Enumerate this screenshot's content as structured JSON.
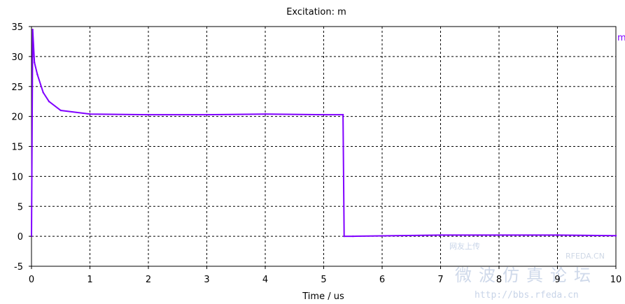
{
  "chart_data": {
    "type": "line",
    "title": "Excitation: m",
    "xlabel": "Time / us",
    "ylabel": "",
    "xlim": [
      0,
      10
    ],
    "ylim": [
      -5,
      35
    ],
    "x_ticks": [
      "0",
      "1",
      "2",
      "3",
      "4",
      "5",
      "6",
      "7",
      "8",
      "9",
      "10"
    ],
    "y_ticks": [
      "-5",
      "0",
      "5",
      "10",
      "15",
      "20",
      "25",
      "30",
      "35"
    ],
    "grid": true,
    "legend_position": "top-right",
    "series": [
      {
        "name": "m",
        "color": "#8000ff",
        "points": [
          [
            0.0,
            0.0
          ],
          [
            0.02,
            34.5
          ],
          [
            0.05,
            29.0
          ],
          [
            0.1,
            27.0
          ],
          [
            0.2,
            24.0
          ],
          [
            0.3,
            22.5
          ],
          [
            0.5,
            21.0
          ],
          [
            1.0,
            20.4
          ],
          [
            2.0,
            20.3
          ],
          [
            3.0,
            20.3
          ],
          [
            4.0,
            20.4
          ],
          [
            5.0,
            20.3
          ],
          [
            5.33,
            20.3
          ],
          [
            5.35,
            0.0
          ],
          [
            5.5,
            0.0
          ],
          [
            7.0,
            0.2
          ],
          [
            9.0,
            0.2
          ],
          [
            10.0,
            0.1
          ]
        ]
      }
    ]
  },
  "watermark": {
    "small": "网友上传",
    "brand": "RFEDA.CN",
    "big": "微波仿真论坛",
    "url": "http://bbs.rfeda.cn"
  }
}
